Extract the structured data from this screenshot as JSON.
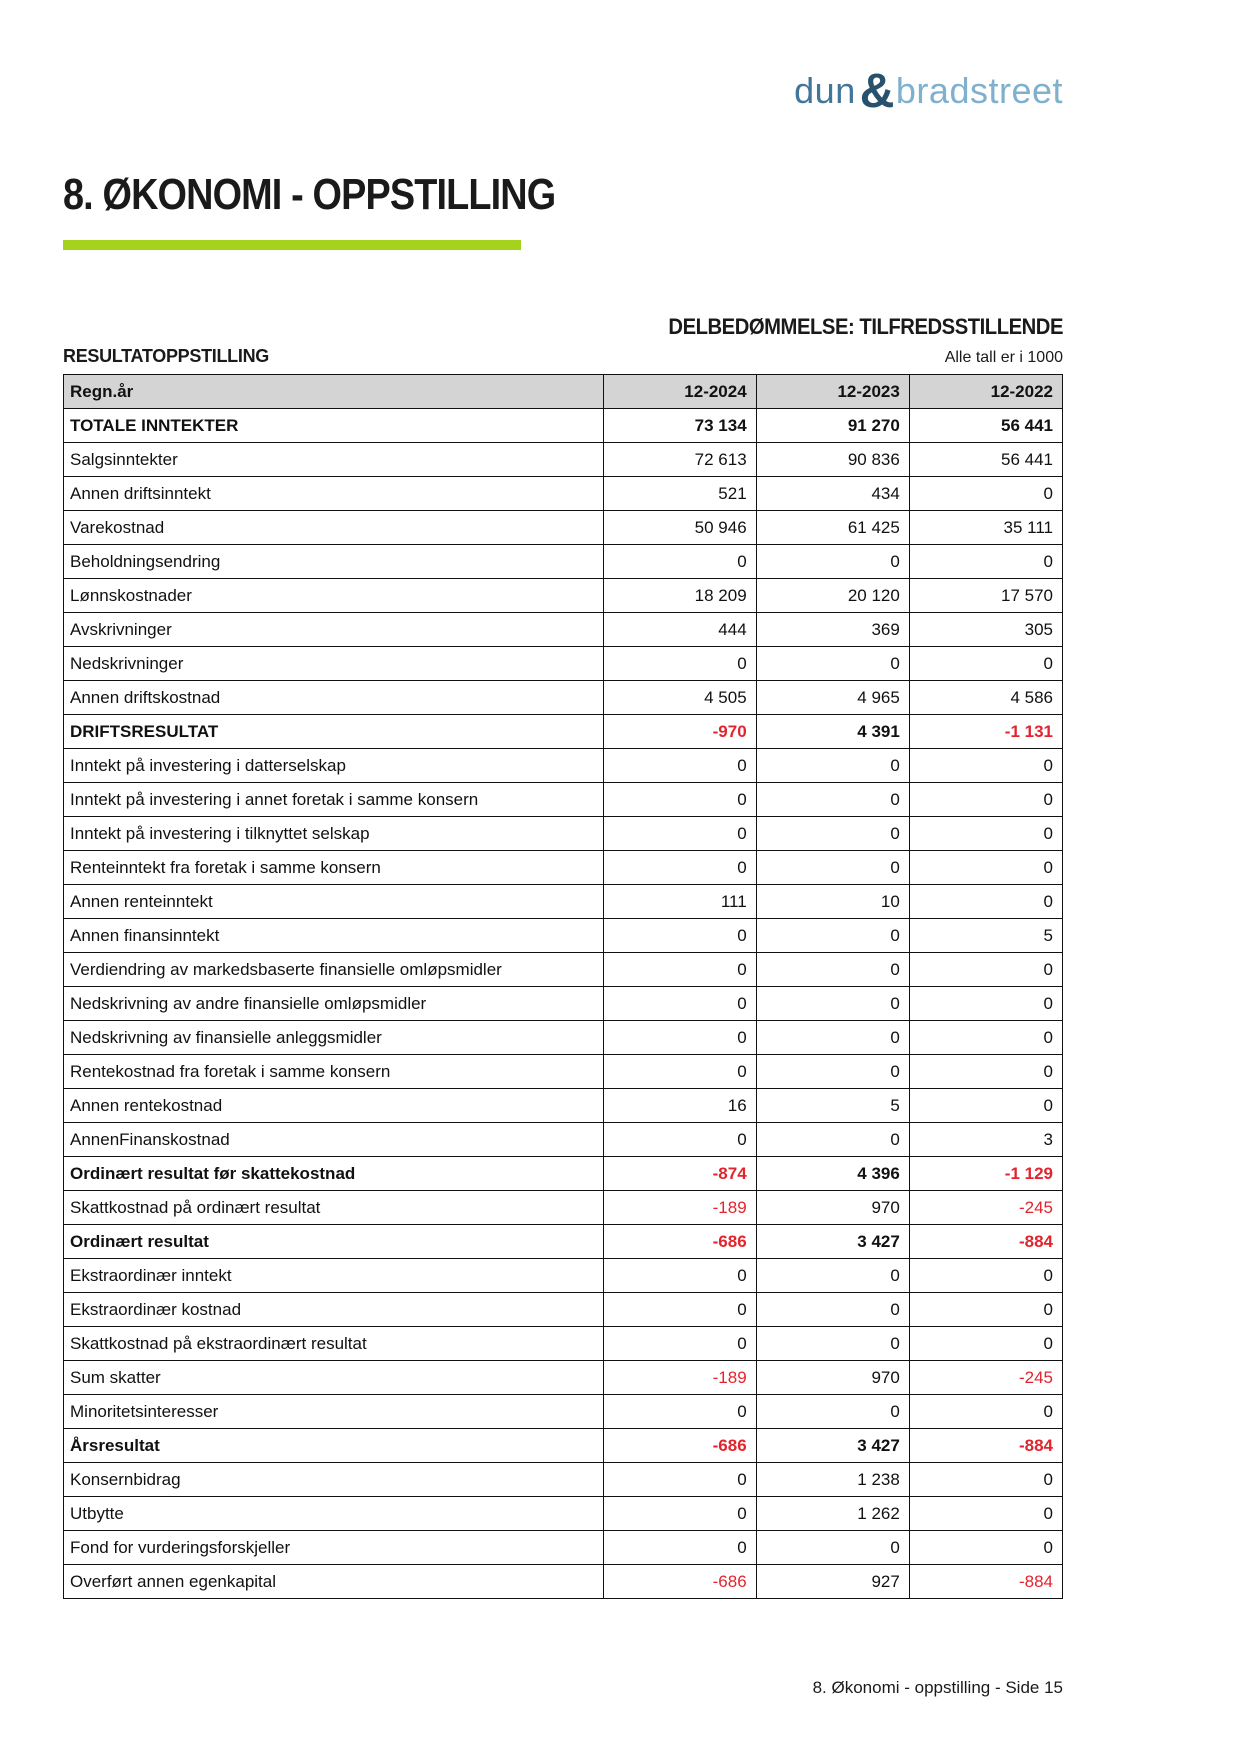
{
  "logo": {
    "dun": "dun",
    "amp": "&",
    "bradstreet": "bradstreet"
  },
  "page_title": "8. ØKONOMI - OPPSTILLING",
  "assessment": "DELBEDØMMELSE: TILFREDSSTILLENDE",
  "section_title": "RESULTATOPPSTILLING",
  "units_note": "Alle tall er i 1000",
  "footer": "8. Økonomi - oppstilling - Side 15",
  "colors": {
    "accent_green": "#a5d31d",
    "negative_red": "#e2242e",
    "header_gray": "#d4d4d4",
    "logo_dun": "#41759a",
    "logo_amp": "#27516d",
    "logo_bradstreet": "#7fb0cd"
  },
  "table": {
    "header": [
      "Regn.år",
      "12-2024",
      "12-2023",
      "12-2022"
    ],
    "rows": [
      {
        "label": "TOTALE INNTEKTER",
        "values": [
          "73 134",
          "91 270",
          "56 441"
        ],
        "bold": true
      },
      {
        "label": "Salgsinntekter",
        "values": [
          "72 613",
          "90 836",
          "56 441"
        ],
        "bold": false
      },
      {
        "label": "Annen driftsinntekt",
        "values": [
          "521",
          "434",
          "0"
        ],
        "bold": false
      },
      {
        "label": "Varekostnad",
        "values": [
          "50 946",
          "61 425",
          "35 111"
        ],
        "bold": false
      },
      {
        "label": "Beholdningsendring",
        "values": [
          "0",
          "0",
          "0"
        ],
        "bold": false
      },
      {
        "label": "Lønnskostnader",
        "values": [
          "18 209",
          "20 120",
          "17 570"
        ],
        "bold": false
      },
      {
        "label": "Avskrivninger",
        "values": [
          "444",
          "369",
          "305"
        ],
        "bold": false
      },
      {
        "label": "Nedskrivninger",
        "values": [
          "0",
          "0",
          "0"
        ],
        "bold": false
      },
      {
        "label": "Annen driftskostnad",
        "values": [
          "4 505",
          "4 965",
          "4 586"
        ],
        "bold": false
      },
      {
        "label": "DRIFTSRESULTAT",
        "values": [
          "-970",
          "4 391",
          "-1 131"
        ],
        "bold": true
      },
      {
        "label": "Inntekt på investering i datterselskap",
        "values": [
          "0",
          "0",
          "0"
        ],
        "bold": false
      },
      {
        "label": "Inntekt på investering i annet foretak i samme konsern",
        "values": [
          "0",
          "0",
          "0"
        ],
        "bold": false
      },
      {
        "label": "Inntekt på investering i tilknyttet selskap",
        "values": [
          "0",
          "0",
          "0"
        ],
        "bold": false
      },
      {
        "label": "Renteinntekt fra foretak i samme konsern",
        "values": [
          "0",
          "0",
          "0"
        ],
        "bold": false
      },
      {
        "label": "Annen renteinntekt",
        "values": [
          "111",
          "10",
          "0"
        ],
        "bold": false
      },
      {
        "label": "Annen finansinntekt",
        "values": [
          "0",
          "0",
          "5"
        ],
        "bold": false
      },
      {
        "label": "Verdiendring av markedsbaserte finansielle omløpsmidler",
        "values": [
          "0",
          "0",
          "0"
        ],
        "bold": false
      },
      {
        "label": "Nedskrivning av andre finansielle omløpsmidler",
        "values": [
          "0",
          "0",
          "0"
        ],
        "bold": false
      },
      {
        "label": "Nedskrivning av finansielle anleggsmidler",
        "values": [
          "0",
          "0",
          "0"
        ],
        "bold": false
      },
      {
        "label": "Rentekostnad fra foretak i samme konsern",
        "values": [
          "0",
          "0",
          "0"
        ],
        "bold": false
      },
      {
        "label": "Annen rentekostnad",
        "values": [
          "16",
          "5",
          "0"
        ],
        "bold": false
      },
      {
        "label": "AnnenFinanskostnad",
        "values": [
          "0",
          "0",
          "3"
        ],
        "bold": false
      },
      {
        "label": "Ordinært resultat før skattekostnad",
        "values": [
          "-874",
          "4 396",
          "-1 129"
        ],
        "bold": true
      },
      {
        "label": "Skattkostnad på ordinært resultat",
        "values": [
          "-189",
          "970",
          "-245"
        ],
        "bold": false
      },
      {
        "label": "Ordinært resultat",
        "values": [
          "-686",
          "3 427",
          "-884"
        ],
        "bold": true
      },
      {
        "label": "Ekstraordinær inntekt",
        "values": [
          "0",
          "0",
          "0"
        ],
        "bold": false
      },
      {
        "label": "Ekstraordinær kostnad",
        "values": [
          "0",
          "0",
          "0"
        ],
        "bold": false
      },
      {
        "label": "Skattkostnad på ekstraordinært resultat",
        "values": [
          "0",
          "0",
          "0"
        ],
        "bold": false
      },
      {
        "label": "Sum skatter",
        "values": [
          "-189",
          "970",
          "-245"
        ],
        "bold": false
      },
      {
        "label": "Minoritetsinteresser",
        "values": [
          "0",
          "0",
          "0"
        ],
        "bold": false
      },
      {
        "label": "Årsresultat",
        "values": [
          "-686",
          "3 427",
          "-884"
        ],
        "bold": true
      },
      {
        "label": "Konsernbidrag",
        "values": [
          "0",
          "1 238",
          "0"
        ],
        "bold": false
      },
      {
        "label": "Utbytte",
        "values": [
          "0",
          "1 262",
          "0"
        ],
        "bold": false
      },
      {
        "label": "Fond for vurderingsforskjeller",
        "values": [
          "0",
          "0",
          "0"
        ],
        "bold": false
      },
      {
        "label": "Overført annen egenkapital",
        "values": [
          "-686",
          "927",
          "-884"
        ],
        "bold": false
      }
    ]
  }
}
